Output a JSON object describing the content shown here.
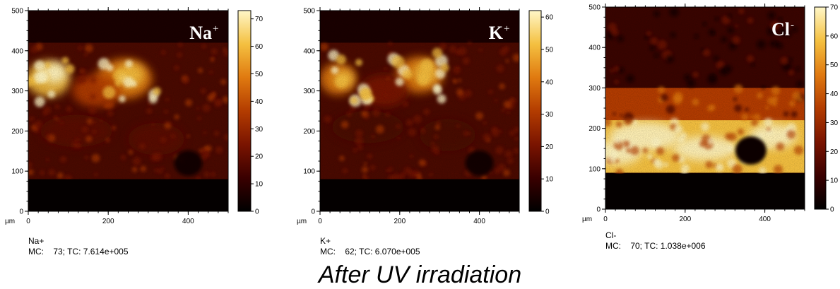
{
  "chart_data": [
    {
      "type": "heatmap",
      "ion_label": "Na",
      "ion_sign": "+",
      "xlabel": "µm",
      "ylabel": "µm",
      "xlim": [
        0,
        500
      ],
      "ylim": [
        0,
        500
      ],
      "x_ticks": [
        "0",
        "200",
        "400"
      ],
      "y_ticks": [
        "0",
        "100",
        "200",
        "300",
        "400",
        "500"
      ],
      "colorbar_range": [
        0,
        73
      ],
      "colorbar_ticks": [
        "0",
        "10",
        "20",
        "30",
        "40",
        "50",
        "60",
        "70"
      ],
      "caption_name": "Na+",
      "caption_stats": "MC:    73; TC: 7.614e+005"
    },
    {
      "type": "heatmap",
      "ion_label": "K",
      "ion_sign": "+",
      "xlabel": "µm",
      "ylabel": "µm",
      "xlim": [
        0,
        500
      ],
      "ylim": [
        0,
        500
      ],
      "x_ticks": [
        "0",
        "200",
        "400"
      ],
      "y_ticks": [
        "0",
        "100",
        "200",
        "300",
        "400",
        "500"
      ],
      "colorbar_range": [
        0,
        62
      ],
      "colorbar_ticks": [
        "0",
        "10",
        "20",
        "30",
        "40",
        "50",
        "60"
      ],
      "caption_name": "K+",
      "caption_stats": "MC:    62; TC: 6.070e+005"
    },
    {
      "type": "heatmap",
      "ion_label": "Cl",
      "ion_sign": "-",
      "xlabel": "µm",
      "ylabel": "µm",
      "xlim": [
        0,
        500
      ],
      "ylim": [
        0,
        500
      ],
      "x_ticks": [
        "0",
        "200",
        "400"
      ],
      "y_ticks": [
        "0",
        "100",
        "200",
        "300",
        "400",
        "500"
      ],
      "colorbar_range": [
        0,
        70
      ],
      "colorbar_ticks": [
        "0",
        "10",
        "20",
        "30",
        "40",
        "50",
        "60",
        "70"
      ],
      "caption_name": "Cl-",
      "caption_stats": "MC:    70; TC: 1.038e+006"
    }
  ],
  "title": "After UV irradiation",
  "colormap": [
    "#000000",
    "#3a0000",
    "#7a1400",
    "#b33c00",
    "#e07a10",
    "#f4c040",
    "#fff7c8"
  ]
}
